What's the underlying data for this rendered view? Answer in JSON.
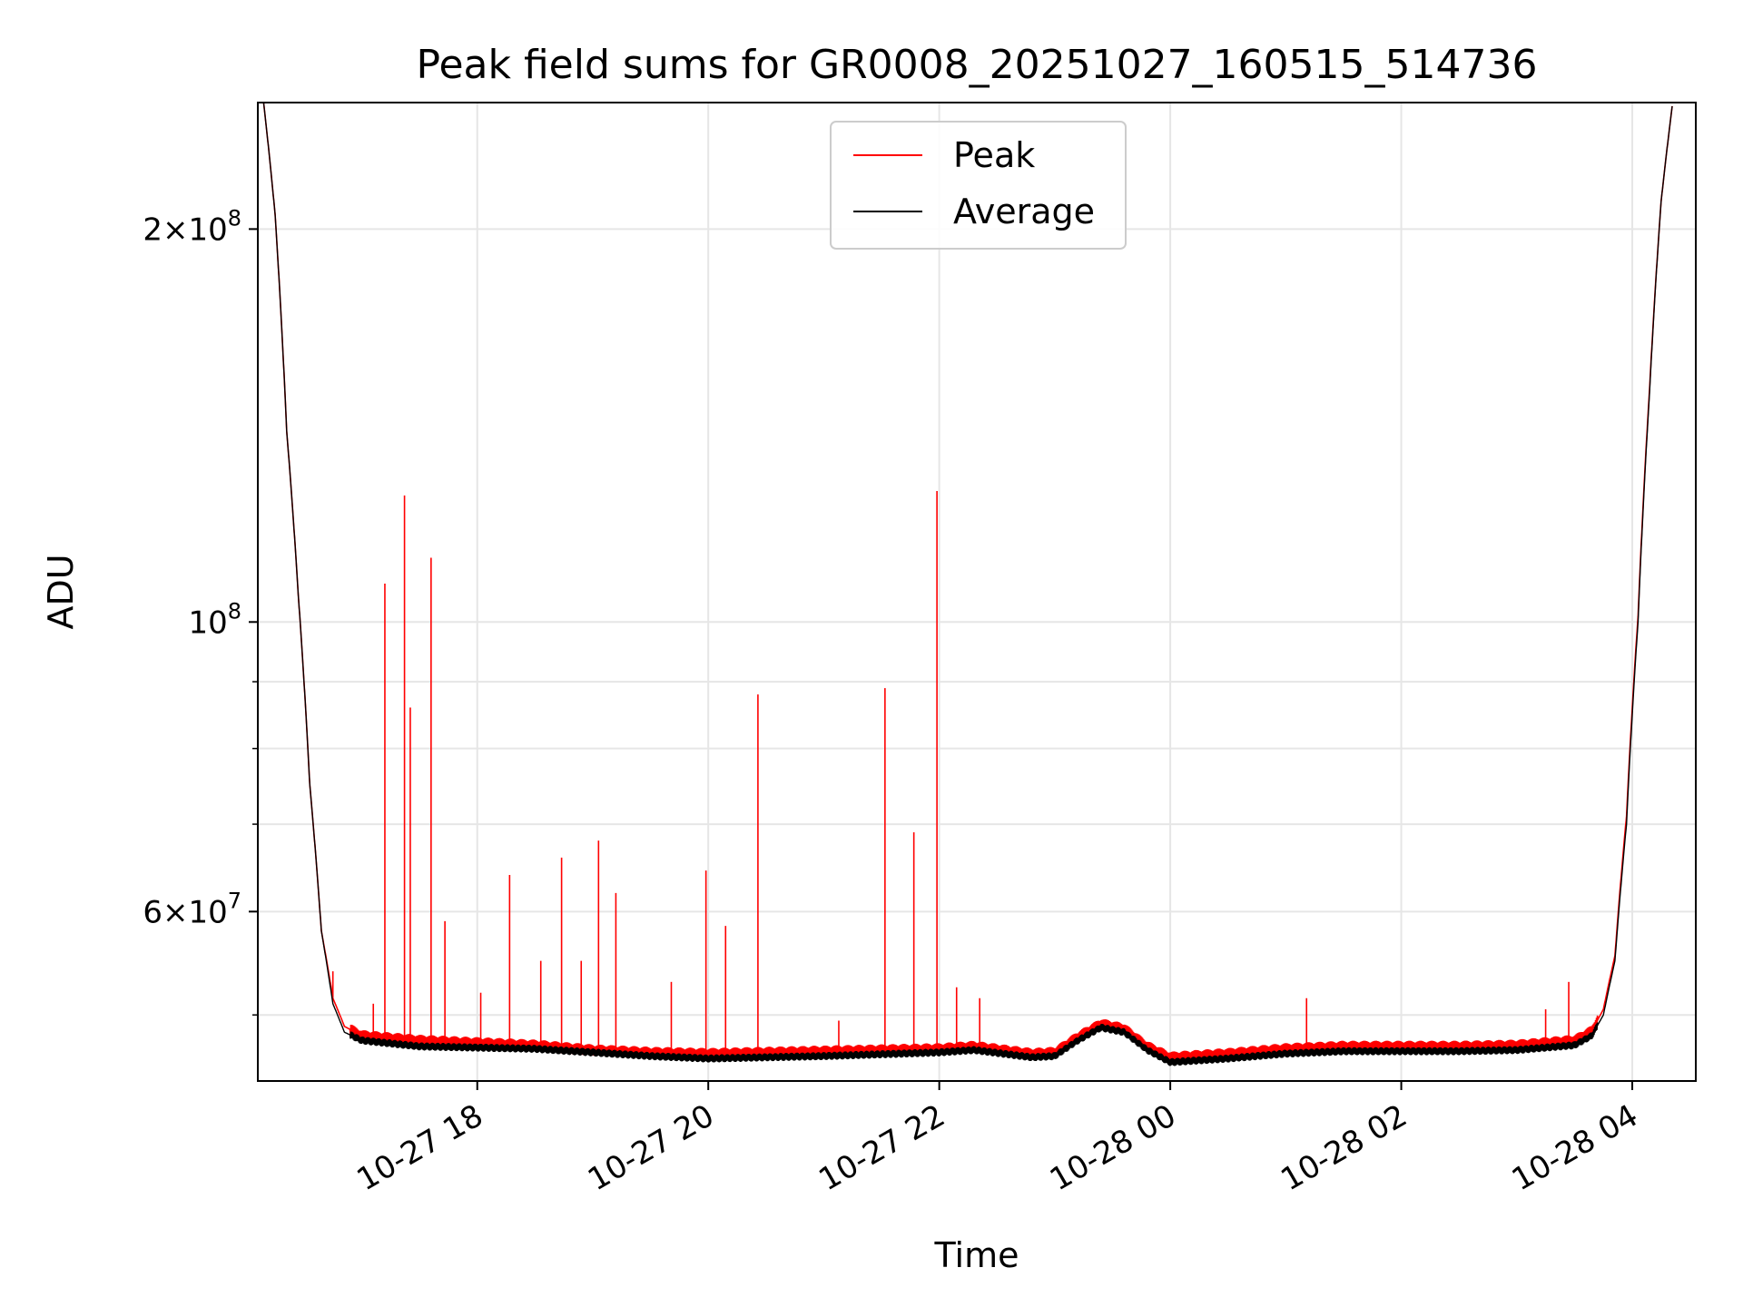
{
  "chart_data": {
    "type": "line",
    "title": "Peak field sums for GR0008_20251027_160515_514736",
    "xlabel": "Time",
    "ylabel": "ADU",
    "yscale": "log",
    "ylim": [
      44500000,
      250000000
    ],
    "xlim_hours": [
      16.1,
      4.55
    ],
    "grid": true,
    "legend_position": "top-center",
    "x_ticks": [
      {
        "hour": 18,
        "label": "10-27 18"
      },
      {
        "hour": 20,
        "label": "10-27 20"
      },
      {
        "hour": 22,
        "label": "10-27 22"
      },
      {
        "hour": 24,
        "label": "10-28 00"
      },
      {
        "hour": 26,
        "label": "10-28 02"
      },
      {
        "hour": 28,
        "label": "10-28 04"
      }
    ],
    "y_major_ticks": [
      {
        "value": 200000000,
        "mantissa": "2",
        "base": "10",
        "exp": "8"
      },
      {
        "value": 100000000,
        "mantissa": "",
        "base": "10",
        "exp": "8"
      },
      {
        "value": 60000000,
        "mantissa": "6",
        "base": "10",
        "exp": "7"
      }
    ],
    "y_minor_ticks": [
      50000000,
      70000000,
      80000000,
      90000000
    ],
    "series": [
      {
        "name": "Average",
        "color": "#000000",
        "points": [
          [
            16.15,
            250000000
          ],
          [
            16.25,
            205000000
          ],
          [
            16.35,
            140000000
          ],
          [
            16.45,
            105000000
          ],
          [
            16.55,
            75000000
          ],
          [
            16.65,
            58000000
          ],
          [
            16.75,
            51000000
          ],
          [
            16.85,
            48500000
          ],
          [
            17.0,
            47800000
          ],
          [
            17.5,
            47300000
          ],
          [
            18.0,
            47200000
          ],
          [
            18.5,
            47100000
          ],
          [
            19.0,
            46800000
          ],
          [
            19.5,
            46500000
          ],
          [
            20.0,
            46300000
          ],
          [
            21.0,
            46500000
          ],
          [
            22.0,
            46800000
          ],
          [
            22.3,
            47000000
          ],
          [
            22.8,
            46400000
          ],
          [
            23.0,
            46500000
          ],
          [
            23.2,
            47800000
          ],
          [
            23.4,
            48900000
          ],
          [
            23.6,
            48500000
          ],
          [
            23.8,
            47000000
          ],
          [
            24.0,
            46000000
          ],
          [
            24.5,
            46300000
          ],
          [
            25.0,
            46700000
          ],
          [
            25.5,
            46900000
          ],
          [
            26.0,
            46900000
          ],
          [
            26.5,
            46900000
          ],
          [
            27.0,
            47000000
          ],
          [
            27.5,
            47400000
          ],
          [
            27.65,
            48200000
          ],
          [
            27.75,
            50000000
          ],
          [
            27.85,
            55000000
          ],
          [
            27.95,
            70000000
          ],
          [
            28.05,
            100000000
          ],
          [
            28.15,
            150000000
          ],
          [
            28.25,
            210000000
          ],
          [
            28.35,
            250000000
          ]
        ]
      },
      {
        "name": "Peak",
        "color": "#ff0000",
        "points": [
          [
            16.15,
            250000000
          ],
          [
            16.25,
            205000000
          ],
          [
            16.35,
            140000000
          ],
          [
            16.45,
            105000000
          ],
          [
            16.55,
            75000000
          ],
          [
            16.65,
            58000000
          ],
          [
            16.75,
            51500000
          ],
          [
            16.85,
            49000000
          ],
          [
            17.0,
            48200000
          ],
          [
            17.5,
            47800000
          ],
          [
            18.0,
            47600000
          ],
          [
            18.5,
            47400000
          ],
          [
            19.0,
            47000000
          ],
          [
            19.5,
            46800000
          ],
          [
            20.0,
            46700000
          ],
          [
            21.0,
            46900000
          ],
          [
            22.0,
            47100000
          ],
          [
            22.3,
            47300000
          ],
          [
            22.8,
            46700000
          ],
          [
            23.0,
            46800000
          ],
          [
            23.2,
            48100000
          ],
          [
            23.4,
            49200000
          ],
          [
            23.6,
            48800000
          ],
          [
            23.8,
            47300000
          ],
          [
            24.0,
            46400000
          ],
          [
            24.5,
            46700000
          ],
          [
            25.0,
            47100000
          ],
          [
            25.5,
            47300000
          ],
          [
            26.0,
            47300000
          ],
          [
            26.5,
            47300000
          ],
          [
            27.0,
            47400000
          ],
          [
            27.5,
            47800000
          ],
          [
            27.65,
            48600000
          ],
          [
            27.75,
            50500000
          ],
          [
            27.85,
            55500000
          ],
          [
            27.95,
            71000000
          ],
          [
            28.05,
            101000000
          ],
          [
            28.15,
            151000000
          ],
          [
            28.25,
            210000000
          ],
          [
            28.35,
            250000000
          ]
        ],
        "spikes": [
          [
            16.75,
            54000000
          ],
          [
            17.1,
            51000000
          ],
          [
            17.2,
            107000000
          ],
          [
            17.37,
            125000000
          ],
          [
            17.42,
            86000000
          ],
          [
            17.6,
            112000000
          ],
          [
            17.72,
            59000000
          ],
          [
            18.03,
            52000000
          ],
          [
            18.28,
            64000000
          ],
          [
            18.55,
            55000000
          ],
          [
            18.73,
            66000000
          ],
          [
            18.9,
            55000000
          ],
          [
            19.05,
            68000000
          ],
          [
            19.2,
            62000000
          ],
          [
            19.68,
            53000000
          ],
          [
            19.98,
            64500000
          ],
          [
            20.15,
            58500000
          ],
          [
            20.43,
            88000000
          ],
          [
            21.13,
            49500000
          ],
          [
            21.53,
            89000000
          ],
          [
            21.78,
            69000000
          ],
          [
            21.98,
            126000000
          ],
          [
            22.15,
            52500000
          ],
          [
            22.35,
            51500000
          ],
          [
            25.18,
            51500000
          ],
          [
            27.25,
            50500000
          ],
          [
            27.45,
            53000000
          ]
        ]
      }
    ]
  }
}
